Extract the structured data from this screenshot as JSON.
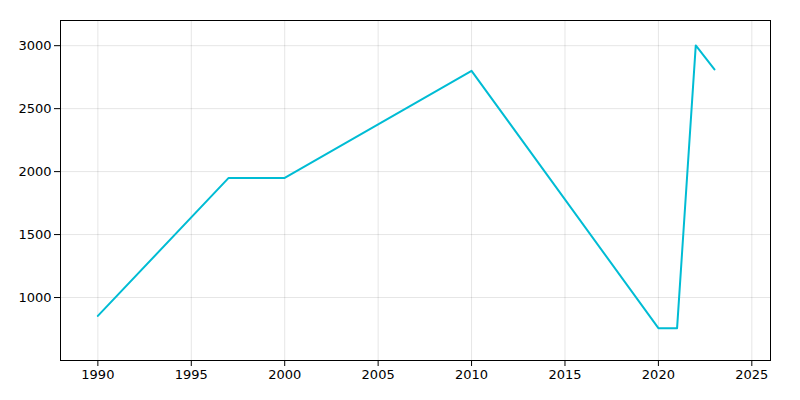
{
  "chart_data": {
    "type": "line",
    "x": [
      1990,
      1997,
      2000,
      2010,
      2020,
      2021,
      2022,
      2023
    ],
    "values": [
      854,
      1950,
      1950,
      2800,
      757,
      757,
      3002,
      2812
    ],
    "color": "#00bcd4",
    "xlim": [
      1988,
      2026
    ],
    "ylim": [
      500,
      3200
    ],
    "xticks": [
      1990,
      1995,
      2000,
      2005,
      2010,
      2015,
      2020,
      2025
    ],
    "yticks": [
      1000,
      1500,
      2000,
      2500,
      3000
    ],
    "grid": true
  }
}
